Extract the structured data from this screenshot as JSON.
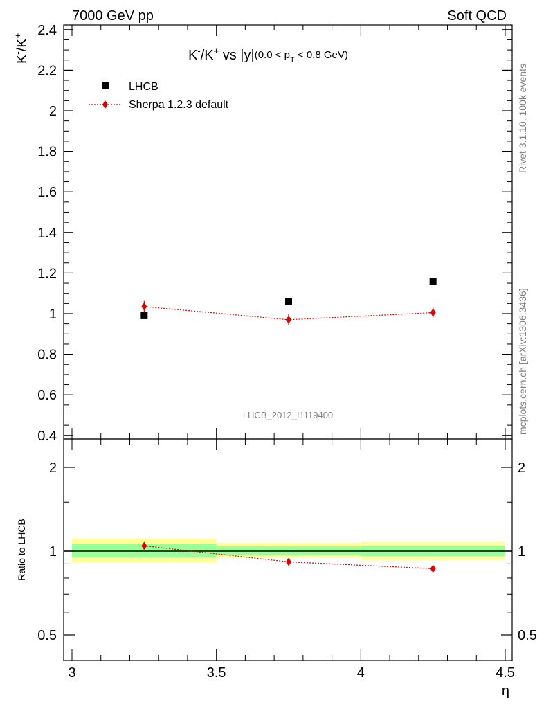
{
  "header": {
    "left": "7000 GeV pp",
    "right": "Soft QCD"
  },
  "side_labels": {
    "rivet": "Rivet 3.1.10,  100k events",
    "mcplots": "mcplots.cern.ch [arXiv:1306.3436]"
  },
  "chart_data": [
    {
      "type": "scatter",
      "panel": "main",
      "title": "K⁻/K⁺ vs |y|(0.0 < p_T < 0.8 GeV)",
      "title_parts": {
        "main": "K⁻/K⁺ vs |y|",
        "sub": "(0.0 < p",
        "sub_T": "T",
        "sub_end": " < 0.8 GeV)"
      },
      "ylabel": "K⁻/K⁺",
      "ylim": [
        0.4,
        2.45
      ],
      "yticks": [
        0.4,
        0.6,
        0.8,
        1,
        1.2,
        1.4,
        1.6,
        1.8,
        2,
        2.2,
        2.4
      ],
      "ytick_labels": [
        "0.4",
        "0.6",
        "0.8",
        "1",
        "1.2",
        "1.4",
        "1.6",
        "1.8",
        "2",
        "2.2",
        "2.4"
      ],
      "xlim": [
        3,
        4.5
      ],
      "watermark": "LHCB_2012_I1119400",
      "legend_position": "top-left",
      "series": [
        {
          "name": "LHCB",
          "marker": "square",
          "color": "#000000",
          "x": [
            3.25,
            3.75,
            4.25
          ],
          "y": [
            0.99,
            1.06,
            1.16
          ]
        },
        {
          "name": "Sherpa 1.2.3 default",
          "marker": "diamond",
          "line": "dotted",
          "color": "#e00000",
          "x": [
            3.25,
            3.75,
            4.25
          ],
          "y": [
            1.035,
            0.97,
            1.005
          ]
        }
      ]
    },
    {
      "type": "scatter",
      "panel": "ratio",
      "ylabel": "Ratio to LHCB",
      "xlabel": "η",
      "ylim": [
        0.4,
        2.3
      ],
      "log_scale_y": true,
      "yticks": [
        0.5,
        1,
        2
      ],
      "ytick_labels": [
        "0.5",
        "1",
        "2"
      ],
      "xlim": [
        3,
        4.5
      ],
      "xticks": [
        3,
        3.5,
        4,
        4.5
      ],
      "xtick_labels": [
        "3",
        "3.5",
        "4",
        "4.5"
      ],
      "reference_line": 1,
      "bands": [
        {
          "x_low": 3.0,
          "x_high": 3.5,
          "stat": [
            0.95,
            1.06
          ],
          "total": [
            0.91,
            1.11
          ]
        },
        {
          "x_low": 3.5,
          "x_high": 4.0,
          "stat": [
            0.965,
            1.04
          ],
          "total": [
            0.95,
            1.07
          ]
        },
        {
          "x_low": 4.0,
          "x_high": 4.5,
          "stat": [
            0.96,
            1.045
          ],
          "total": [
            0.93,
            1.08
          ]
        }
      ],
      "band_colors": {
        "stat": "#99ff99",
        "total": "#ffff99"
      },
      "series": [
        {
          "name": "Sherpa 1.2.3 default",
          "x": [
            3.25,
            3.75,
            4.25
          ],
          "y": [
            1.045,
            0.915,
            0.865
          ],
          "color": "#e00000"
        }
      ]
    }
  ]
}
